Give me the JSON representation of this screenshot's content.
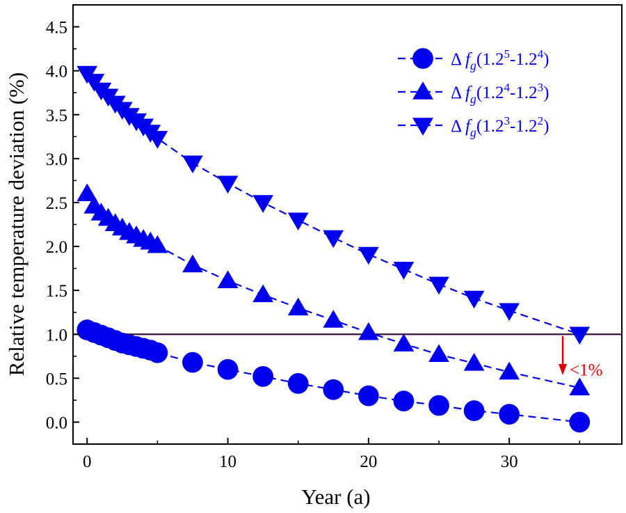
{
  "chart_data": {
    "type": "line",
    "title": "",
    "xlabel": "Year (a)",
    "ylabel": "Relative temperature deviation (%)",
    "xlim": [
      -1,
      38
    ],
    "ylim": [
      -0.25,
      4.75
    ],
    "xticks": [
      0,
      10,
      20,
      30
    ],
    "xtick_labels": [
      "0",
      "10",
      "20",
      "30"
    ],
    "yticks": [
      0.0,
      0.5,
      1.0,
      1.5,
      2.0,
      2.5,
      3.0,
      3.5,
      4.0,
      4.5
    ],
    "ytick_labels": [
      "0.0",
      "0.5",
      "1.0",
      "1.5",
      "2.0",
      "2.5",
      "3.0",
      "3.5",
      "4.0",
      "4.5"
    ],
    "grid": false,
    "legend_position": "top-right",
    "line_color": "#0000ee",
    "series": [
      {
        "name": "fg(1.2^5-1.2^4)",
        "legend": {
          "delta": "Δ",
          "f": "f",
          "sub": "g",
          "open": "(1.2",
          "sup1": "5",
          "mid": "-1.2",
          "sup2": "4",
          "close": ")"
        },
        "marker": "circle",
        "x": [
          0,
          0.5,
          1,
          1.5,
          2,
          2.5,
          3,
          3.5,
          4,
          4.5,
          5,
          7.5,
          10,
          12.5,
          15,
          17.5,
          20,
          22.5,
          25,
          27.5,
          30,
          35
        ],
        "y": [
          1.05,
          1.02,
          0.99,
          0.96,
          0.93,
          0.9,
          0.88,
          0.86,
          0.84,
          0.82,
          0.79,
          0.68,
          0.6,
          0.52,
          0.44,
          0.37,
          0.3,
          0.24,
          0.19,
          0.13,
          0.09,
          0.0
        ]
      },
      {
        "name": "fg(1.2^4-1.2^3)",
        "legend": {
          "delta": "Δ",
          "f": "f",
          "sub": "g",
          "open": "(1.2",
          "sup1": "4",
          "mid": "-1.2",
          "sup2": "3",
          "close": ")"
        },
        "marker": "triangle-up",
        "x": [
          0,
          0.5,
          1,
          1.5,
          2,
          2.5,
          3,
          3.5,
          4,
          4.5,
          5,
          7.5,
          10,
          12.5,
          15,
          17.5,
          20,
          22.5,
          25,
          27.5,
          30,
          35
        ],
        "y": [
          2.6,
          2.46,
          2.38,
          2.32,
          2.26,
          2.21,
          2.16,
          2.12,
          2.08,
          2.05,
          2.01,
          1.79,
          1.61,
          1.45,
          1.3,
          1.16,
          1.02,
          0.89,
          0.77,
          0.67,
          0.57,
          0.39
        ]
      },
      {
        "name": "fg(1.2^3-1.2^2)",
        "legend": {
          "delta": "Δ",
          "f": "f",
          "sub": "g",
          "open": "(1.2",
          "sup1": "3",
          "mid": "-1.2",
          "sup2": "2",
          "close": ")"
        },
        "marker": "triangle-down",
        "x": [
          0,
          0.5,
          1,
          1.5,
          2,
          2.5,
          3,
          3.5,
          4,
          4.5,
          5,
          7.5,
          10,
          12.5,
          15,
          17.5,
          20,
          22.5,
          25,
          27.5,
          30,
          35
        ],
        "y": [
          3.97,
          3.88,
          3.78,
          3.71,
          3.63,
          3.56,
          3.49,
          3.43,
          3.37,
          3.3,
          3.23,
          2.95,
          2.72,
          2.5,
          2.3,
          2.1,
          1.91,
          1.74,
          1.57,
          1.41,
          1.27,
          1.0
        ]
      }
    ],
    "reference_line": {
      "y": 1.0,
      "color": "#3a1040"
    },
    "annotation": {
      "text": "<1%",
      "color": "#dd0000",
      "x": 33.8,
      "y_from": 0.98,
      "y_to": 0.55
    }
  }
}
